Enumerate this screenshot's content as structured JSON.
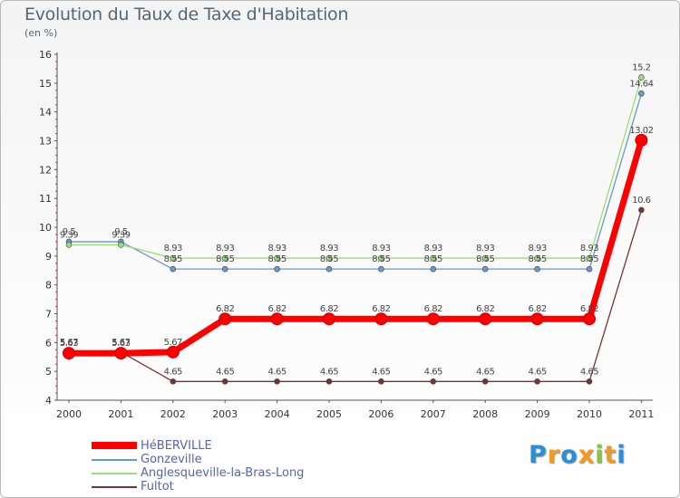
{
  "chart_data": {
    "type": "line",
    "title": "Evolution du Taux de Taxe d'Habitation",
    "subtitle": "(en %)",
    "x": [
      "2000",
      "2001",
      "2002",
      "2003",
      "2004",
      "2005",
      "2006",
      "2007",
      "2008",
      "2009",
      "2010",
      "2011"
    ],
    "y_ticks": [
      "4",
      "5",
      "6",
      "7",
      "8",
      "9",
      "10",
      "11",
      "12",
      "13",
      "14",
      "15",
      "16"
    ],
    "ylim": [
      4,
      16
    ],
    "grid": false,
    "legend_position": "bottom-left",
    "series": [
      {
        "name": "HéBERVILLE",
        "color": "#ff0000",
        "values": [
          5.63,
          5.63,
          5.67,
          6.82,
          6.82,
          6.82,
          6.82,
          6.82,
          6.82,
          6.82,
          6.82,
          13.02
        ],
        "labels": [
          "5.63",
          "5.63",
          "5.67",
          "6.82",
          "6.82",
          "6.82",
          "6.82",
          "6.82",
          "6.82",
          "6.82",
          "6.82",
          "13.02"
        ]
      },
      {
        "name": "Gonzeville",
        "color": "#6699cc",
        "values": [
          9.5,
          9.5,
          8.55,
          8.55,
          8.55,
          8.55,
          8.55,
          8.55,
          8.55,
          8.55,
          8.55,
          14.64
        ],
        "labels": [
          "9.5",
          "9.5",
          "8.55",
          "8.55",
          "8.55",
          "8.55",
          "8.55",
          "8.55",
          "8.55",
          "8.55",
          "8.55",
          "14.64"
        ]
      },
      {
        "name": "Anglesqueville-la-Bras-Long",
        "color": "#99dd77",
        "values": [
          9.39,
          9.39,
          8.93,
          8.93,
          8.93,
          8.93,
          8.93,
          8.93,
          8.93,
          8.93,
          8.93,
          15.2
        ],
        "labels": [
          "9.39",
          "9.39",
          "8.93",
          "8.93",
          "8.93",
          "8.93",
          "8.93",
          "8.93",
          "8.93",
          "8.93",
          "8.93",
          "15.2"
        ]
      },
      {
        "name": "Fultot",
        "color": "#773333",
        "values": [
          5.67,
          5.67,
          4.65,
          4.65,
          4.65,
          4.65,
          4.65,
          4.65,
          4.65,
          4.65,
          4.65,
          10.6
        ],
        "labels": [
          "5.67",
          "5.67",
          "4.65",
          "4.65",
          "4.65",
          "4.65",
          "4.65",
          "4.65",
          "4.65",
          "4.65",
          "4.65",
          "10.6"
        ]
      }
    ]
  },
  "logo": {
    "letters": [
      "P",
      "r",
      "o",
      "x",
      "i",
      "t",
      "i"
    ],
    "colors": [
      "#2b8fd6",
      "#f39a1f",
      "#2b8fd6",
      "#f39a1f",
      "#8bc34a",
      "#f39a1f",
      "#2b8fd6"
    ]
  }
}
